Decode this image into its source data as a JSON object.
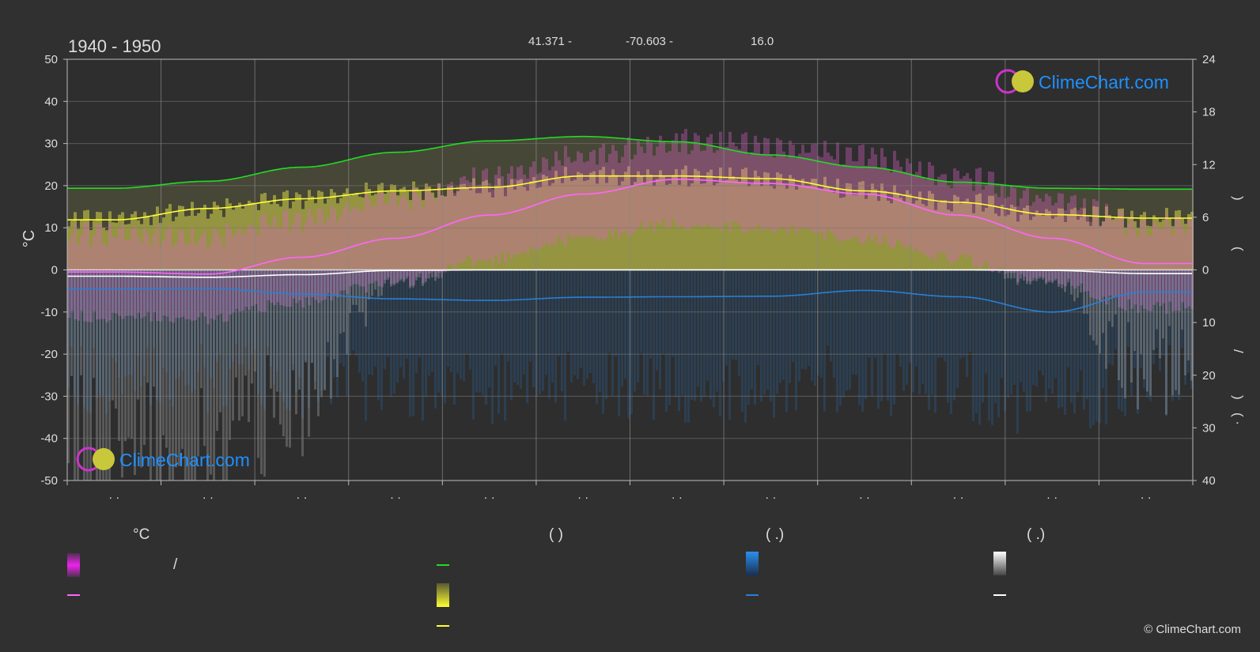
{
  "title": "1940 - 1950",
  "coords": {
    "lat": "41.371 -",
    "lon": "-70.603 -",
    "elev": "16.0"
  },
  "brand": {
    "text": "ClimeChart.com",
    "copyright": "© ClimeChart.com"
  },
  "legend": {
    "col1_header": "°C",
    "col1_row1_text": "/",
    "col2_header": "(          )",
    "col3_header": "(   .)",
    "col4_header": "(   .)"
  },
  "right_axis_labels": [
    ")",
    "(",
    "/",
    ")",
    "(  ·"
  ],
  "colors": {
    "background": "#303030",
    "temp_range": "#cc33cc",
    "temp_mean": "#ff66ff",
    "daylight": "#22dd22",
    "sunshine": "#d4d44a",
    "sunshine_line": "#ffff33",
    "rain": "#2a7fd4",
    "snow": "#bbbbbb",
    "snow_line": "#ffffff",
    "brand_blue": "#1e90ff"
  },
  "chart_data": {
    "type": "line",
    "x": [
      0,
      1,
      2,
      3,
      4,
      5,
      6,
      7,
      8,
      9,
      10,
      11,
      12
    ],
    "ylim": [
      -50,
      50
    ],
    "yticks": [
      50,
      40,
      30,
      20,
      10,
      0,
      -10,
      -20,
      -30,
      -40,
      -50
    ],
    "ylabel": "°C",
    "y2_top_ticks": [
      24,
      18,
      12,
      6,
      0
    ],
    "y2_top_range": [
      0,
      24
    ],
    "y2_bottom_ticks": [
      0,
      10,
      20,
      30,
      40
    ],
    "y2_bottom_range": [
      0,
      40
    ],
    "xtick_labels": [
      "· ·",
      "· ·",
      "· ·",
      "· ·",
      "· ·",
      "· ·",
      "· ·",
      "· ·",
      "· ·",
      "· ·",
      "· ·",
      "· ·"
    ],
    "series": [
      {
        "key": "daylight",
        "axis": "hours",
        "values": [
          9.3,
          10.1,
          11.7,
          13.4,
          14.7,
          15.2,
          14.6,
          13.1,
          11.7,
          10.0,
          9.3,
          9.2,
          9.2
        ]
      },
      {
        "key": "sunshine",
        "axis": "hours",
        "values": [
          5.7,
          7.0,
          8.1,
          9.0,
          9.4,
          10.7,
          10.7,
          10.4,
          9.0,
          7.7,
          6.3,
          5.9,
          5.9
        ]
      },
      {
        "key": "temp_mean",
        "axis": "temp",
        "values": [
          -0.5,
          -1.0,
          3.0,
          7.5,
          13.0,
          18.0,
          21.5,
          20.5,
          18.0,
          13.0,
          7.5,
          1.5,
          1.5
        ]
      },
      {
        "key": "rain_mean",
        "axis": "precip",
        "values": [
          3.6,
          3.5,
          4.6,
          5.5,
          5.8,
          5.2,
          5.1,
          5.0,
          3.9,
          5.1,
          8.0,
          4.2,
          4.2
        ]
      },
      {
        "key": "snow_mean",
        "axis": "precip",
        "values": [
          1.2,
          1.4,
          0.9,
          0.1,
          0,
          0,
          0,
          0,
          0,
          0,
          0.1,
          0.7,
          0.7
        ]
      }
    ]
  }
}
